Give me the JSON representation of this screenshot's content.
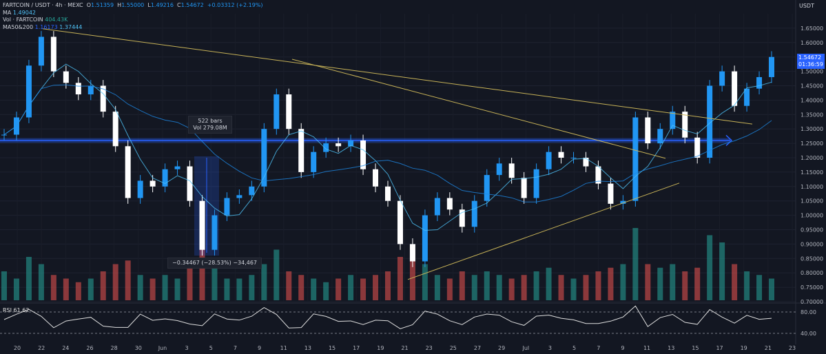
{
  "legend": {
    "pair": "FARTCOIN / USDT · 4h · MEXC",
    "o_label": "O",
    "o": "1.51359",
    "h_label": "H",
    "h": "1.55000",
    "l_label": "L",
    "l": "1.49216",
    "c_label": "C",
    "c": "1.54672",
    "change": "+0.03312 (+2.19%)",
    "ma_label": "MA",
    "ma": "1.49042",
    "vol_label": "Vol · FARTCOIN",
    "vol": "404.43K",
    "ma50200_label": "MA50&200",
    "ma50": "1.16173",
    "ma200": "1.37444"
  },
  "price_axis": {
    "currency": "USDT",
    "current_price": "1.54672",
    "countdown": "01:36:59"
  },
  "rsi": {
    "label": "RSI",
    "value": "61.62",
    "upper": "80.00",
    "lower": "40.00"
  },
  "measure_box": {
    "bars": "522 bars",
    "vol": "Vol 279.08M"
  },
  "drawdown_label": "−0.34467 (−28.53%) −34,467",
  "colors": {
    "up": "#2196f3",
    "down": "#ffffff",
    "vol_up": "#26a69a",
    "vol_down": "#ef5350",
    "trendline": "#c9b458",
    "accent": "#2962ff"
  },
  "chart_data": {
    "type": "line",
    "title": "FARTCOIN / USDT · 4h · MEXC",
    "xlabel": "",
    "ylabel": "USDT",
    "ylim": [
      0.7,
      1.7
    ],
    "y_ticks": [
      1.65,
      1.6,
      1.55,
      1.5,
      1.45,
      1.4,
      1.35,
      1.3,
      1.25,
      1.2,
      1.15,
      1.1,
      1.05,
      1.0,
      0.95,
      0.9,
      0.85,
      0.8,
      0.75,
      0.7
    ],
    "x_ticks": [
      "20",
      "22",
      "24",
      "26",
      "28",
      "30",
      "Jun",
      "3",
      "5",
      "7",
      "9",
      "11",
      "13",
      "15",
      "17",
      "19",
      "21",
      "23",
      "25",
      "27",
      "29",
      "Jul",
      "3",
      "5",
      "7",
      "9",
      "11",
      "13",
      "15",
      "17",
      "19",
      "21",
      "23"
    ],
    "grid": true,
    "series": [
      {
        "name": "",
        "x": [
          "20",
          "21",
          "22",
          "23",
          "24",
          "25",
          "26",
          "27",
          "28",
          "29",
          "30",
          "31",
          "Jun",
          "2",
          "3",
          "4",
          "5",
          "6",
          "7",
          "8",
          "9",
          "10",
          "11",
          "12",
          "13",
          "14",
          "15",
          "16",
          "17",
          "18",
          "19",
          "20",
          "21",
          "22",
          "23",
          "24",
          "25",
          "26",
          "27",
          "28",
          "29",
          "30",
          "Jul",
          "2",
          "3",
          "4",
          "5",
          "6",
          "7",
          "8",
          "9",
          "10",
          "11",
          "12",
          "13",
          "14",
          "15",
          "16",
          "17",
          "18",
          "19",
          "20",
          "21"
        ],
        "values": [
          1.28,
          1.34,
          1.52,
          1.62,
          1.5,
          1.46,
          1.42,
          1.45,
          1.36,
          1.24,
          1.06,
          1.12,
          1.1,
          1.16,
          1.17,
          1.05,
          0.88,
          1.0,
          1.06,
          1.07,
          1.1,
          1.3,
          1.42,
          1.3,
          1.15,
          1.22,
          1.25,
          1.24,
          1.26,
          1.16,
          1.1,
          1.05,
          0.9,
          0.84,
          1.0,
          1.06,
          1.02,
          0.96,
          1.05,
          1.14,
          1.18,
          1.13,
          1.06,
          1.16,
          1.22,
          1.2,
          1.2,
          1.17,
          1.11,
          1.04,
          1.05,
          1.34,
          1.25,
          1.3,
          1.36,
          1.27,
          1.2,
          1.45,
          1.5,
          1.38,
          1.44,
          1.48,
          1.55
        ]
      }
    ],
    "volume_series": {
      "name": "Vol · FARTCOIN",
      "values": [
        0.4,
        0.3,
        0.6,
        0.5,
        0.35,
        0.3,
        0.25,
        0.3,
        0.4,
        0.5,
        0.55,
        0.35,
        0.3,
        0.35,
        0.3,
        0.5,
        0.9,
        0.45,
        0.3,
        0.3,
        0.35,
        0.5,
        0.7,
        0.4,
        0.35,
        0.3,
        0.25,
        0.3,
        0.35,
        0.3,
        0.35,
        0.4,
        0.6,
        0.7,
        0.5,
        0.35,
        0.3,
        0.4,
        0.35,
        0.4,
        0.35,
        0.3,
        0.35,
        0.4,
        0.45,
        0.35,
        0.3,
        0.35,
        0.4,
        0.45,
        0.5,
        1.0,
        0.5,
        0.45,
        0.5,
        0.4,
        0.45,
        0.9,
        0.8,
        0.5,
        0.4,
        0.35,
        0.3
      ]
    }
  }
}
